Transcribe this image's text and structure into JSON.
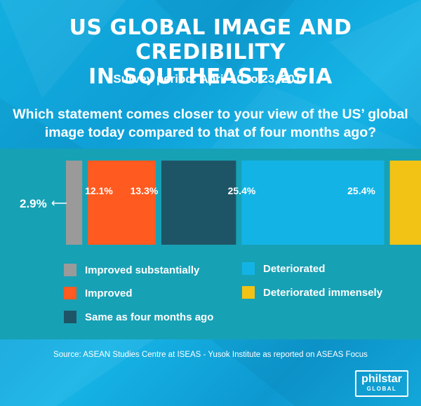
{
  "title_line1": "US GLOBAL IMAGE AND CREDIBILITY",
  "title_line2": "IN SOUTHEAST ASIA",
  "survey_period": "Survey period: April 10 to 23, 2017",
  "question_line1": "Which statement comes closer to your view of the US’ global",
  "question_line2": "image today compared to that of four months ago?",
  "chart_data": {
    "type": "bar",
    "orientation": "horizontal-segments",
    "categories": [
      "Improved substantially",
      "Improved",
      "Same as four months ago",
      "Deteriorated",
      "Deteriorated immensely"
    ],
    "values": [
      2.9,
      12.1,
      13.3,
      25.4,
      25.4
    ],
    "value_labels": [
      "2.9%",
      "12.1%",
      "13.3%",
      "25.4%",
      "25.4%"
    ],
    "colors": [
      "#9a9a9a",
      "#ff5a1f",
      "#1e5566",
      "#13b3e6",
      "#f2c314"
    ],
    "legend": "bottom"
  },
  "source": "Source: ASEAN Studies Centre at ISEAS - Yusok Institute as reported on ASEAS Focus",
  "logo": {
    "main": "philstar",
    "sub": "GLOBAL"
  }
}
